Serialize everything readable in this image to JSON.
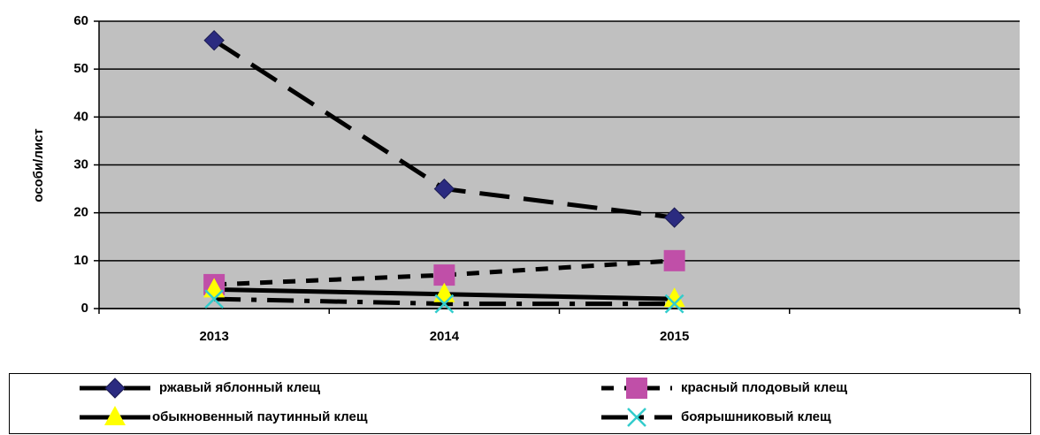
{
  "chart_data": {
    "type": "line",
    "y_label": "особи/лист",
    "categories": [
      "2013",
      "2014",
      "2015",
      null
    ],
    "series": [
      {
        "name": "ржавый яблонный клещ",
        "color": "#2b2b80",
        "marker": "diamond",
        "line": "long-dash",
        "values": [
          56,
          25,
          19,
          null
        ]
      },
      {
        "name": "красный плодовый клещ",
        "color": "#c04fa8",
        "marker": "square",
        "line": "dash",
        "values": [
          5,
          7,
          10,
          null
        ]
      },
      {
        "name": "обыкновенный паутинный клещ",
        "color": "#ffff00",
        "marker": "triangle",
        "line": "solid",
        "values": [
          4,
          3,
          2,
          null
        ]
      },
      {
        "name": "боярышниковый клещ",
        "color": "#33cccc",
        "marker": "x",
        "line": "dash-dot",
        "values": [
          2,
          1,
          1,
          null
        ]
      }
    ],
    "ylim": [
      0,
      60
    ],
    "yticks": [
      0,
      10,
      20,
      30,
      40,
      50,
      60
    ],
    "grid": true,
    "plot_background": "#c0c0c0",
    "legend": "bottom"
  }
}
